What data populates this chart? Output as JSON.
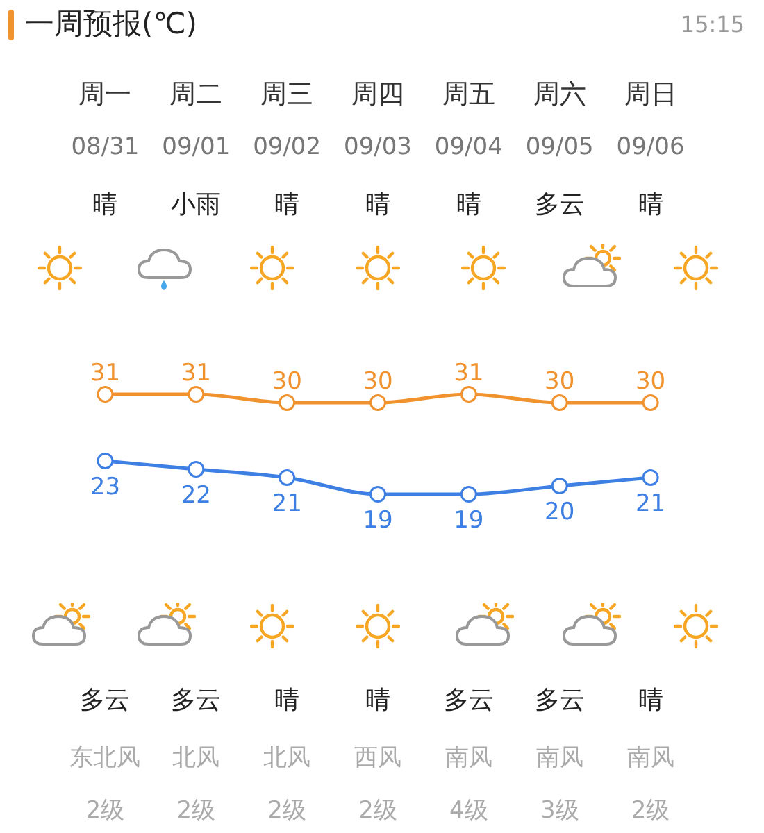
{
  "chart_data": {
    "type": "line",
    "title": "一周预报(℃)",
    "categories": [
      "周一",
      "周二",
      "周三",
      "周四",
      "周五",
      "周六",
      "周日"
    ],
    "series": [
      {
        "color": "#f0922e",
        "values": [
          31,
          31,
          30,
          30,
          31,
          30,
          30
        ]
      },
      {
        "color": "#3d7fe3",
        "values": [
          23,
          22,
          21,
          19,
          19,
          20,
          21
        ]
      }
    ],
    "data_labels": true,
    "marker": "circle",
    "annotations": [
      "15:15",
      "08/31",
      "09/01",
      "09/02",
      "09/03",
      "09/04",
      "09/05",
      "09/06",
      "晴",
      "小雨",
      "晴",
      "晴",
      "晴",
      "多云",
      "晴",
      "多云",
      "多云",
      "晴",
      "晴",
      "多云",
      "多云",
      "晴",
      "东北风",
      "北风",
      "北风",
      "西风",
      "南风",
      "南风",
      "南风",
      "2级",
      "2级",
      "2级",
      "2级",
      "4级",
      "3级",
      "2级"
    ]
  }
}
